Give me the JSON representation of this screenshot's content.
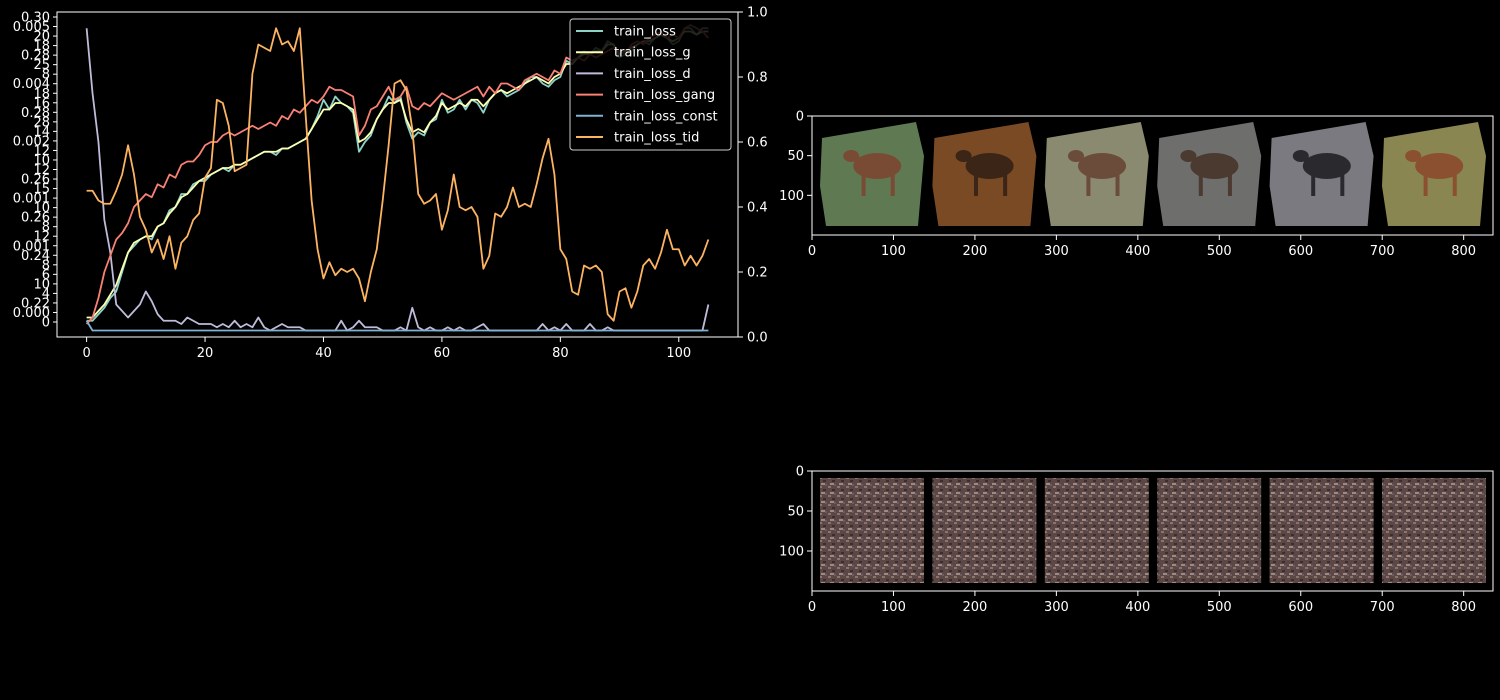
{
  "colors": {
    "background": "#000000",
    "foreground": "#ffffff",
    "train_loss": "#8dd3c7",
    "train_loss_g": "#feffb3",
    "train_loss_d": "#bfbbd9",
    "train_loss_gang": "#fa8174",
    "train_loss_const": "#81b1d2",
    "train_loss_tid": "#fdb462"
  },
  "chart_data": [
    {
      "type": "line",
      "style": "dark_background",
      "legend": "upper-right",
      "x": [
        0,
        1,
        2,
        3,
        4,
        5,
        6,
        7,
        8,
        9,
        10,
        11,
        12,
        13,
        14,
        15,
        16,
        17,
        18,
        19,
        20,
        21,
        22,
        23,
        24,
        25,
        26,
        27,
        28,
        29,
        30,
        31,
        32,
        33,
        34,
        35,
        36,
        37,
        38,
        39,
        40,
        41,
        42,
        43,
        44,
        45,
        46,
        47,
        48,
        49,
        50,
        51,
        52,
        53,
        54,
        55,
        56,
        57,
        58,
        59,
        60,
        61,
        62,
        63,
        64,
        65,
        66,
        67,
        68,
        69,
        70,
        71,
        72,
        73,
        74,
        75,
        76,
        77,
        78,
        79,
        80,
        81,
        82,
        83,
        84,
        85,
        86,
        87,
        88,
        89,
        90,
        91,
        92,
        93,
        94,
        95,
        96,
        97,
        98,
        99,
        100,
        101,
        102,
        103,
        104,
        105
      ],
      "xticks": [
        "0",
        "20",
        "40",
        "60",
        "80",
        "100"
      ],
      "xlim": [
        -5,
        110
      ],
      "right_axis": {
        "ylim": [
          0,
          1
        ],
        "ticks": [
          "0.0",
          "0.2",
          "0.4",
          "0.6",
          "0.8",
          "1.0"
        ]
      },
      "left_axis_labels": [
        "0.30",
        "0.005",
        "20",
        "18",
        "0.28",
        "25",
        "8",
        "0.004",
        "18",
        "16",
        "0.28",
        "28",
        "14",
        "0.002",
        "12",
        "10",
        "12",
        "0.26",
        "15",
        "0.001",
        "10",
        "0.26",
        "8",
        "12",
        "0.001",
        "0.24",
        "8",
        "6",
        "10",
        "4",
        "0.22",
        "0.000",
        "0"
      ],
      "series": [
        {
          "name": "train_loss",
          "values": [
            0.05,
            0.05,
            0.07,
            0.09,
            0.12,
            0.14,
            0.2,
            0.26,
            0.28,
            0.3,
            0.31,
            0.3,
            0.34,
            0.35,
            0.39,
            0.4,
            0.44,
            0.44,
            0.47,
            0.48,
            0.48,
            0.5,
            0.51,
            0.52,
            0.51,
            0.53,
            0.53,
            0.54,
            0.55,
            0.56,
            0.57,
            0.57,
            0.56,
            0.58,
            0.58,
            0.59,
            0.6,
            0.61,
            0.64,
            0.68,
            0.73,
            0.7,
            0.74,
            0.72,
            0.71,
            0.69,
            0.57,
            0.6,
            0.62,
            0.67,
            0.7,
            0.74,
            0.72,
            0.74,
            0.66,
            0.61,
            0.63,
            0.62,
            0.66,
            0.67,
            0.73,
            0.69,
            0.7,
            0.73,
            0.7,
            0.73,
            0.72,
            0.69,
            0.73,
            0.75,
            0.76,
            0.74,
            0.75,
            0.76,
            0.78,
            0.8,
            0.8,
            0.78,
            0.77,
            0.79,
            0.8,
            0.85,
            0.84,
            0.86,
            0.88,
            0.87,
            0.89,
            0.88,
            0.91,
            0.9,
            0.86,
            0.87,
            0.88,
            0.9,
            0.91,
            0.9,
            0.92,
            0.93,
            0.92,
            0.9,
            0.91,
            0.95,
            0.95,
            0.93,
            0.95,
            0.95
          ]
        },
        {
          "name": "train_loss_g",
          "values": [
            0.06,
            0.06,
            0.08,
            0.1,
            0.13,
            0.16,
            0.21,
            0.26,
            0.29,
            0.3,
            0.31,
            0.31,
            0.34,
            0.35,
            0.38,
            0.4,
            0.43,
            0.44,
            0.46,
            0.48,
            0.49,
            0.5,
            0.51,
            0.52,
            0.52,
            0.53,
            0.53,
            0.54,
            0.55,
            0.56,
            0.57,
            0.57,
            0.57,
            0.58,
            0.58,
            0.59,
            0.6,
            0.61,
            0.64,
            0.67,
            0.7,
            0.7,
            0.72,
            0.72,
            0.71,
            0.7,
            0.6,
            0.61,
            0.63,
            0.67,
            0.7,
            0.72,
            0.72,
            0.73,
            0.67,
            0.63,
            0.64,
            0.63,
            0.66,
            0.68,
            0.72,
            0.7,
            0.71,
            0.72,
            0.71,
            0.73,
            0.73,
            0.71,
            0.73,
            0.75,
            0.76,
            0.75,
            0.76,
            0.77,
            0.78,
            0.79,
            0.8,
            0.79,
            0.78,
            0.8,
            0.81,
            0.84,
            0.84,
            0.86,
            0.87,
            0.87,
            0.88,
            0.88,
            0.9,
            0.9,
            0.87,
            0.88,
            0.89,
            0.9,
            0.91,
            0.91,
            0.92,
            0.93,
            0.92,
            0.91,
            0.92,
            0.94,
            0.94,
            0.93,
            0.94,
            0.94
          ]
        },
        {
          "name": "train_loss_d",
          "values": [
            0.95,
            0.75,
            0.6,
            0.36,
            0.26,
            0.1,
            0.08,
            0.06,
            0.08,
            0.1,
            0.14,
            0.11,
            0.07,
            0.05,
            0.05,
            0.05,
            0.04,
            0.06,
            0.05,
            0.04,
            0.04,
            0.04,
            0.03,
            0.04,
            0.03,
            0.05,
            0.03,
            0.04,
            0.03,
            0.06,
            0.03,
            0.02,
            0.03,
            0.04,
            0.03,
            0.03,
            0.03,
            0.02,
            0.02,
            0.02,
            0.02,
            0.02,
            0.02,
            0.05,
            0.02,
            0.03,
            0.05,
            0.03,
            0.03,
            0.03,
            0.02,
            0.02,
            0.02,
            0.03,
            0.02,
            0.09,
            0.03,
            0.02,
            0.03,
            0.02,
            0.02,
            0.03,
            0.02,
            0.03,
            0.02,
            0.02,
            0.03,
            0.04,
            0.02,
            0.02,
            0.02,
            0.02,
            0.02,
            0.02,
            0.02,
            0.02,
            0.02,
            0.04,
            0.02,
            0.03,
            0.02,
            0.04,
            0.02,
            0.02,
            0.02,
            0.04,
            0.02,
            0.02,
            0.03,
            0.02,
            0.02,
            0.02,
            0.02,
            0.02,
            0.02,
            0.02,
            0.02,
            0.02,
            0.02,
            0.02,
            0.02,
            0.02,
            0.02,
            0.02,
            0.02,
            0.1
          ]
        },
        {
          "name": "train_loss_gang",
          "values": [
            0.04,
            0.06,
            0.12,
            0.2,
            0.25,
            0.3,
            0.32,
            0.35,
            0.4,
            0.42,
            0.44,
            0.43,
            0.47,
            0.46,
            0.5,
            0.49,
            0.53,
            0.54,
            0.54,
            0.56,
            0.59,
            0.6,
            0.6,
            0.62,
            0.63,
            0.62,
            0.63,
            0.64,
            0.65,
            0.64,
            0.65,
            0.66,
            0.65,
            0.68,
            0.67,
            0.7,
            0.69,
            0.71,
            0.73,
            0.72,
            0.74,
            0.77,
            0.76,
            0.76,
            0.75,
            0.74,
            0.62,
            0.65,
            0.7,
            0.71,
            0.74,
            0.77,
            0.73,
            0.74,
            0.77,
            0.71,
            0.7,
            0.72,
            0.71,
            0.73,
            0.75,
            0.74,
            0.73,
            0.74,
            0.75,
            0.76,
            0.77,
            0.74,
            0.77,
            0.75,
            0.78,
            0.78,
            0.77,
            0.76,
            0.79,
            0.8,
            0.81,
            0.8,
            0.79,
            0.82,
            0.81,
            0.86,
            0.85,
            0.86,
            0.85,
            0.87,
            0.86,
            0.87,
            0.88,
            0.89,
            0.88,
            0.87,
            0.9,
            0.91,
            0.9,
            0.92,
            0.93,
            0.94,
            0.92,
            0.93,
            0.92,
            0.95,
            0.96,
            0.95,
            0.94,
            0.92
          ]
        },
        {
          "name": "train_loss_const",
          "values": [
            0.05,
            0.02,
            0.02,
            0.02,
            0.02,
            0.02,
            0.02,
            0.02,
            0.02,
            0.02,
            0.02,
            0.02,
            0.02,
            0.02,
            0.02,
            0.02,
            0.02,
            0.02,
            0.02,
            0.02,
            0.02,
            0.02,
            0.02,
            0.02,
            0.02,
            0.02,
            0.02,
            0.02,
            0.02,
            0.02,
            0.02,
            0.02,
            0.02,
            0.02,
            0.02,
            0.02,
            0.02,
            0.02,
            0.02,
            0.02,
            0.02,
            0.02,
            0.02,
            0.02,
            0.02,
            0.02,
            0.02,
            0.02,
            0.02,
            0.02,
            0.02,
            0.02,
            0.02,
            0.02,
            0.02,
            0.02,
            0.02,
            0.02,
            0.02,
            0.02,
            0.02,
            0.02,
            0.02,
            0.02,
            0.02,
            0.02,
            0.02,
            0.02,
            0.02,
            0.02,
            0.02,
            0.02,
            0.02,
            0.02,
            0.02,
            0.02,
            0.02,
            0.02,
            0.02,
            0.02,
            0.02,
            0.02,
            0.02,
            0.02,
            0.02,
            0.02,
            0.02,
            0.02,
            0.02,
            0.02,
            0.02,
            0.02,
            0.02,
            0.02,
            0.02,
            0.02,
            0.02,
            0.02,
            0.02,
            0.02,
            0.02,
            0.02,
            0.02,
            0.02,
            0.02,
            0.02
          ]
        },
        {
          "name": "train_loss_tid",
          "values": [
            0.45,
            0.45,
            0.42,
            0.41,
            0.41,
            0.45,
            0.5,
            0.59,
            0.5,
            0.37,
            0.33,
            0.26,
            0.3,
            0.24,
            0.31,
            0.21,
            0.29,
            0.31,
            0.36,
            0.38,
            0.49,
            0.52,
            0.73,
            0.72,
            0.65,
            0.51,
            0.52,
            0.53,
            0.81,
            0.9,
            0.89,
            0.88,
            0.95,
            0.9,
            0.91,
            0.88,
            0.95,
            0.68,
            0.42,
            0.27,
            0.18,
            0.23,
            0.19,
            0.21,
            0.2,
            0.21,
            0.18,
            0.11,
            0.2,
            0.27,
            0.42,
            0.59,
            0.78,
            0.79,
            0.76,
            0.64,
            0.44,
            0.41,
            0.42,
            0.44,
            0.33,
            0.39,
            0.5,
            0.4,
            0.39,
            0.4,
            0.37,
            0.21,
            0.25,
            0.38,
            0.37,
            0.4,
            0.46,
            0.4,
            0.41,
            0.4,
            0.47,
            0.55,
            0.61,
            0.5,
            0.27,
            0.24,
            0.14,
            0.13,
            0.22,
            0.21,
            0.22,
            0.2,
            0.07,
            0.05,
            0.14,
            0.15,
            0.09,
            0.14,
            0.22,
            0.24,
            0.21,
            0.26,
            0.33,
            0.27,
            0.27,
            0.22,
            0.25,
            0.22,
            0.25,
            0.3
          ]
        }
      ]
    },
    {
      "type": "image",
      "xticks": [
        "0",
        "100",
        "200",
        "300",
        "400",
        "500",
        "600",
        "700",
        "800"
      ],
      "yticks": [
        "0",
        "50",
        "100"
      ],
      "xlim": [
        0,
        836
      ],
      "ylim": [
        150,
        0
      ],
      "tiles": 6,
      "tile_colors": [
        {
          "bg": "#5f7a52",
          "fg": "#7a4b34"
        },
        {
          "bg": "#7a4a24",
          "fg": "#3b2517"
        },
        {
          "bg": "#8a8a70",
          "fg": "#6b4b3a"
        },
        {
          "bg": "#6e6e6c",
          "fg": "#4a3a30"
        },
        {
          "bg": "#7a7a80",
          "fg": "#2a2a2e"
        },
        {
          "bg": "#8a8652",
          "fg": "#8a5030"
        }
      ]
    },
    {
      "type": "image",
      "xticks": [
        "0",
        "100",
        "200",
        "300",
        "400",
        "500",
        "600",
        "700",
        "800"
      ],
      "yticks": [
        "0",
        "50",
        "100"
      ],
      "xlim": [
        0,
        836
      ],
      "ylim": [
        150,
        0
      ],
      "tiles": 6,
      "tile_colors": [
        {
          "bg": "#5e4a48",
          "fg": "#8a6f6a"
        },
        {
          "bg": "#5e4a48",
          "fg": "#8a6f6a"
        },
        {
          "bg": "#5e4a48",
          "fg": "#8a6f6a"
        },
        {
          "bg": "#5e4a48",
          "fg": "#8a6f6a"
        },
        {
          "bg": "#5e4a48",
          "fg": "#8a6f6a"
        },
        {
          "bg": "#5e4a48",
          "fg": "#8a6f6a"
        }
      ]
    }
  ]
}
